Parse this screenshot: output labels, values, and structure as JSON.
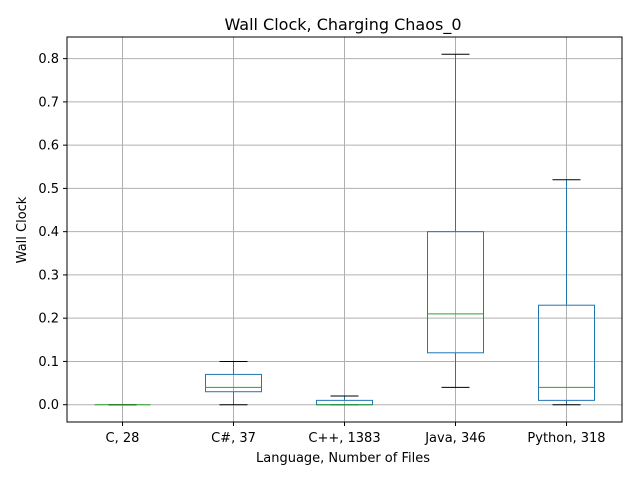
{
  "chart_data": {
    "type": "box",
    "title": "Wall Clock, Charging Chaos_0",
    "xlabel": "Language, Number of Files",
    "ylabel": "Wall Clock",
    "ylim": [
      -0.04,
      0.85
    ],
    "yticks": [
      0.0,
      0.1,
      0.2,
      0.3,
      0.4,
      0.5,
      0.6,
      0.7,
      0.8
    ],
    "ytick_labels": [
      "0.0",
      "0.1",
      "0.2",
      "0.3",
      "0.4",
      "0.5",
      "0.6",
      "0.7",
      "0.8"
    ],
    "grid": true,
    "categories": [
      "C, 28",
      "C#, 37",
      "C++, 1383",
      "Java, 346",
      "Python, 318"
    ],
    "boxes": [
      {
        "whisker_low": 0.0,
        "q1": 0.0,
        "median": 0.0,
        "q3": 0.0,
        "whisker_high": 0.0
      },
      {
        "whisker_low": 0.0,
        "q1": 0.03,
        "median": 0.04,
        "q3": 0.07,
        "whisker_high": 0.1
      },
      {
        "whisker_low": 0.0,
        "q1": 0.0,
        "median": 0.0,
        "q3": 0.01,
        "whisker_high": 0.02
      },
      {
        "whisker_low": 0.04,
        "q1": 0.12,
        "median": 0.21,
        "q3": 0.4,
        "whisker_high": 0.81
      },
      {
        "whisker_low": 0.0,
        "q1": 0.01,
        "median": 0.04,
        "q3": 0.23,
        "whisker_high": 0.52
      }
    ],
    "colors": {
      "box": "#1f77b4",
      "median": "#2ca02c",
      "caps": "#000000",
      "grid": "#b0b0b0",
      "axes": "#000000"
    }
  }
}
